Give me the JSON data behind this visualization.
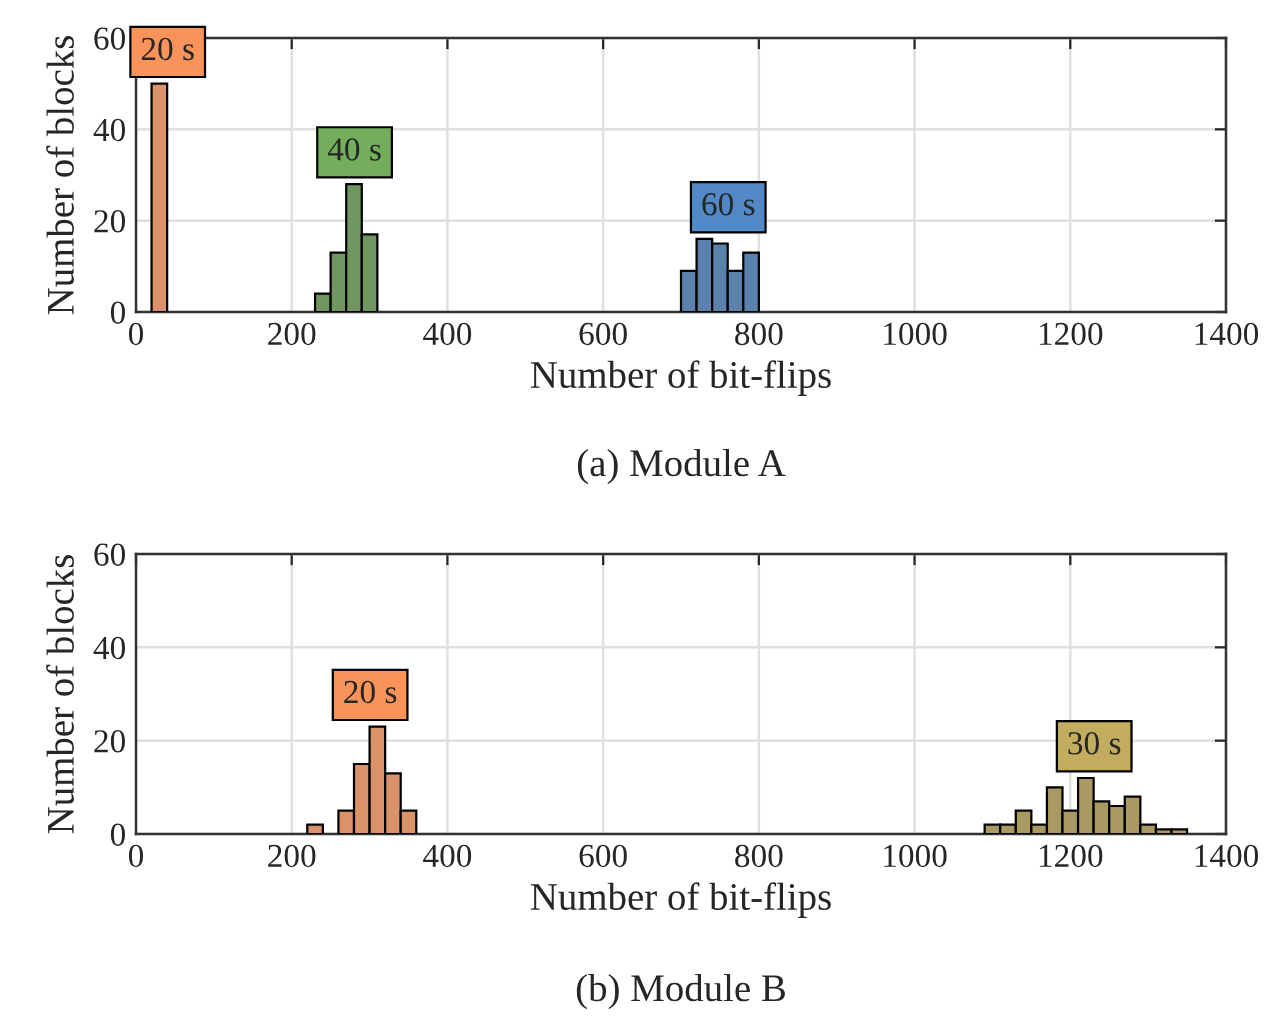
{
  "chart_data": [
    {
      "type": "bar",
      "xlabel": "Number of bit-flips",
      "ylabel": "Number of blocks",
      "annotations": [
        "(a) Module A"
      ],
      "xlim": [
        0,
        1400
      ],
      "xticks": [
        0,
        200,
        400,
        600,
        800,
        1000,
        1200,
        1400
      ],
      "ylim": [
        0,
        60
      ],
      "yticks": [
        0,
        20,
        40,
        60
      ],
      "grid": true,
      "series": [
        {
          "name": "20 s",
          "color": "#d9926a",
          "x": [
            30
          ],
          "values": [
            50
          ]
        },
        {
          "name": "40 s",
          "color": "#6f975f",
          "x": [
            240,
            260,
            280,
            300
          ],
          "values": [
            4,
            13,
            28,
            17
          ]
        },
        {
          "name": "60 s",
          "color": "#5b82ad",
          "x": [
            710,
            730,
            750,
            770,
            790
          ],
          "values": [
            9,
            16,
            15,
            9,
            13
          ]
        }
      ]
    },
    {
      "type": "bar",
      "xlabel": "Number of bit-flips",
      "ylabel": "Number of blocks",
      "annotations": [
        "(b) Module B"
      ],
      "xlim": [
        0,
        1400
      ],
      "xticks": [
        0,
        200,
        400,
        600,
        800,
        1000,
        1200,
        1400
      ],
      "ylim": [
        0,
        60
      ],
      "yticks": [
        0,
        20,
        40,
        60
      ],
      "grid": true,
      "series": [
        {
          "name": "20 s",
          "color": "#d9926a",
          "x": [
            230,
            250,
            270,
            290,
            310,
            330,
            350
          ],
          "values": [
            2,
            null,
            5,
            15,
            23,
            13,
            5
          ]
        },
        {
          "name": "30 s",
          "color": "#a99a64",
          "x": [
            1100,
            1120,
            1140,
            1160,
            1180,
            1200,
            1220,
            1240,
            1260,
            1280,
            1300,
            1320,
            1340
          ],
          "values": [
            2,
            2,
            5,
            2,
            10,
            5,
            12,
            7,
            6,
            8,
            2,
            1,
            1
          ]
        }
      ]
    }
  ]
}
